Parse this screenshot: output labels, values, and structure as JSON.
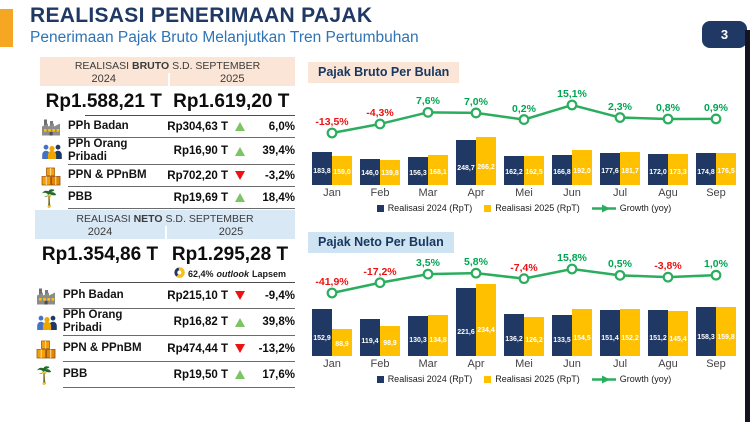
{
  "header": {
    "title": "REALISASI PENERIMAAN PAJAK",
    "subtitle": "Penerimaan Pajak Bruto Melanjutkan Tren Pertumbuhan",
    "page_number": "3"
  },
  "colors": {
    "navy": "#1F3864",
    "gold": "#FFC000",
    "green": "#00A651",
    "up_green": "#7DC462",
    "down_red": "#EE1111",
    "peach": "#FBE5D6",
    "light_blue": "#D9E8F5",
    "subtitle_blue": "#2E74B5",
    "accent_orange": "#F5A623"
  },
  "bruto_table": {
    "header": {
      "prefix": "REALISASI ",
      "bold": "BRUTO",
      "suffix": " S.D. SEPTEMBER",
      "col_2024": "2024",
      "col_2025": "2025"
    },
    "total_2024": "Rp1.588,21 T",
    "total_2025": "Rp1.619,20 T",
    "rows": [
      {
        "icon": "factory-icon",
        "label": "PPh Badan",
        "value": "Rp304,63 T",
        "direction": "up",
        "pct": "6,0%"
      },
      {
        "icon": "people-icon",
        "label": "PPh Orang Pribadi",
        "value": "Rp16,90 T",
        "direction": "up",
        "pct": "39,4%"
      },
      {
        "icon": "boxes-icon",
        "label": "PPN & PPnBM",
        "value": "Rp702,20 T",
        "direction": "down",
        "pct": "-3,2%"
      },
      {
        "icon": "tree-icon",
        "label": "PBB",
        "value": "Rp19,69 T",
        "direction": "up",
        "pct": "18,4%"
      }
    ]
  },
  "neto_table": {
    "header": {
      "prefix": "REALISASI ",
      "bold": "NETO",
      "suffix": " S.D. SEPTEMBER",
      "col_2024": "2024",
      "col_2025": "2025"
    },
    "total_2024": "Rp1.354,86 T",
    "total_2025": "Rp1.295,28 T",
    "outlook": {
      "pct": "62,4%",
      "word": "outlook",
      "suffix": "Lapsem"
    },
    "rows": [
      {
        "icon": "factory-icon",
        "label": "PPh Badan",
        "value": "Rp215,10 T",
        "direction": "down",
        "pct": "-9,4%"
      },
      {
        "icon": "people-icon",
        "label": "PPh Orang Pribadi",
        "value": "Rp16,82 T",
        "direction": "up",
        "pct": "39,8%"
      },
      {
        "icon": "boxes-icon",
        "label": "PPN & PPnBM",
        "value": "Rp474,44 T",
        "direction": "down",
        "pct": "-13,2%"
      },
      {
        "icon": "tree-icon",
        "label": "PBB",
        "value": "Rp19,50 T",
        "direction": "up",
        "pct": "17,6%"
      }
    ]
  },
  "chart_data": [
    {
      "type": "bar",
      "title": "Pajak Bruto Per Bulan",
      "categories": [
        "Jan",
        "Feb",
        "Mar",
        "Apr",
        "Mei",
        "Jun",
        "Jul",
        "Agu",
        "Sep"
      ],
      "series": [
        {
          "name": "Realisasi 2024 (RpT)",
          "color": "#1F3864",
          "values": [
            183.8,
            146.0,
            156.3,
            248.7,
            162.2,
            166.8,
            177.6,
            172.0,
            174.8
          ]
        },
        {
          "name": "Realisasi 2025 (RpT)",
          "color": "#FFC000",
          "values": [
            159.0,
            139.8,
            168.1,
            266.2,
            162.5,
            192.0,
            181.7,
            173.3,
            176.5
          ]
        }
      ],
      "growth": {
        "name": "Growth (yoy)",
        "color": "#2BAD5E",
        "unit": "%",
        "values": [
          -13.5,
          -4.3,
          7.6,
          7.0,
          0.2,
          15.1,
          2.3,
          0.8,
          0.9
        ]
      },
      "ylim": [
        0,
        280
      ],
      "legend_position": "bottom",
      "grid": false
    },
    {
      "type": "bar",
      "title": "Pajak Neto Per Bulan",
      "categories": [
        "Jan",
        "Feb",
        "Mar",
        "Apr",
        "Mei",
        "Jun",
        "Jul",
        "Agu",
        "Sep"
      ],
      "series": [
        {
          "name": "Realisasi 2024 (RpT)",
          "color": "#1F3864",
          "values": [
            152.9,
            119.4,
            130.3,
            221.6,
            136.2,
            133.5,
            151.4,
            151.2,
            158.3
          ]
        },
        {
          "name": "Realisasi 2025 (RpT)",
          "color": "#FFC000",
          "values": [
            88.9,
            98.9,
            134.8,
            234.4,
            126.2,
            154.5,
            152.2,
            145.4,
            159.8
          ]
        }
      ],
      "growth": {
        "name": "Growth (yoy)",
        "color": "#2BAD5E",
        "unit": "%",
        "values": [
          -41.9,
          -17.2,
          3.5,
          5.8,
          -7.4,
          15.8,
          0.5,
          -3.8,
          1.0
        ]
      },
      "ylim": [
        0,
        250
      ],
      "legend_position": "bottom",
      "grid": false
    }
  ]
}
